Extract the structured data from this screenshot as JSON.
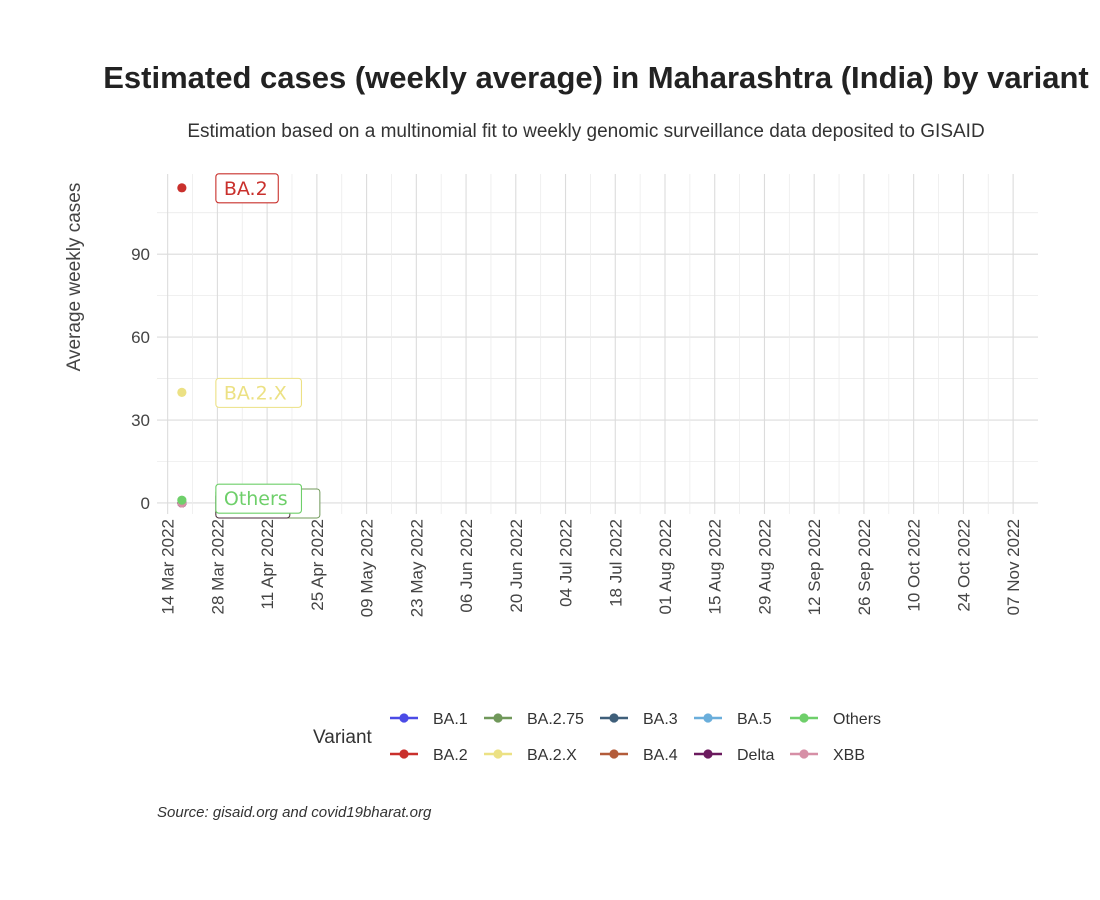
{
  "chart_data": {
    "type": "scatter",
    "title": "Estimated cases (weekly average) in Maharashtra (India) by variant",
    "subtitle": "Estimation based on a multinomial fit to weekly genomic surveillance data deposited to GISAID",
    "ylabel": "Average weekly cases",
    "xlabel": "",
    "ylim": [
      -4,
      119
    ],
    "yticks": [
      0,
      30,
      60,
      90
    ],
    "xlim": [
      "2022-03-11",
      "2022-11-14"
    ],
    "xticks": [
      "14 Mar 2022",
      "28 Mar 2022",
      "11 Apr 2022",
      "25 Apr 2022",
      "09 May 2022",
      "23 May 2022",
      "06 Jun 2022",
      "20 Jun 2022",
      "04 Jul 2022",
      "18 Jul 2022",
      "01 Aug 2022",
      "15 Aug 2022",
      "29 Aug 2022",
      "12 Sep 2022",
      "26 Sep 2022",
      "10 Oct 2022",
      "24 Oct 2022",
      "07 Nov 2022"
    ],
    "xtick_dates": [
      "2022-03-14",
      "2022-03-28",
      "2022-04-11",
      "2022-04-25",
      "2022-05-09",
      "2022-05-23",
      "2022-06-06",
      "2022-06-20",
      "2022-07-04",
      "2022-07-18",
      "2022-08-01",
      "2022-08-15",
      "2022-08-29",
      "2022-09-12",
      "2022-09-26",
      "2022-10-10",
      "2022-10-24",
      "2022-11-07"
    ],
    "grid": true,
    "legend_position": "bottom",
    "legend_title": "Variant",
    "legend_rows": [
      [
        "BA.1",
        "BA.2.75",
        "BA.3",
        "BA.5",
        "Others"
      ],
      [
        "BA.2",
        "BA.2.X",
        "BA.4",
        "Delta",
        "XBB"
      ]
    ],
    "series": [
      {
        "name": "BA.1",
        "color": "#4b4be6",
        "points": [
          {
            "x": "2022-03-18",
            "y": 0
          }
        ]
      },
      {
        "name": "BA.2",
        "color": "#c9302c",
        "points": [
          {
            "x": "2022-03-18",
            "y": 114
          }
        ],
        "label": "BA.2"
      },
      {
        "name": "BA.2.75",
        "color": "#70985a",
        "points": [
          {
            "x": "2022-03-18",
            "y": 0
          }
        ]
      },
      {
        "name": "BA.2.X",
        "color": "#ece184",
        "points": [
          {
            "x": "2022-03-18",
            "y": 40
          }
        ],
        "label": "BA.2.X"
      },
      {
        "name": "BA.3",
        "color": "#3f5f7a",
        "points": [
          {
            "x": "2022-03-18",
            "y": 0
          }
        ]
      },
      {
        "name": "BA.4",
        "color": "#b35c3a",
        "points": [
          {
            "x": "2022-03-18",
            "y": 0
          }
        ]
      },
      {
        "name": "BA.5",
        "color": "#6aaedb",
        "points": [
          {
            "x": "2022-03-18",
            "y": 0
          }
        ]
      },
      {
        "name": "Delta",
        "color": "#6b1a5e",
        "points": [
          {
            "x": "2022-03-18",
            "y": 0
          }
        ]
      },
      {
        "name": "Others",
        "color": "#6ecf6a",
        "points": [
          {
            "x": "2022-03-18",
            "y": 1
          }
        ],
        "label": "Others"
      },
      {
        "name": "XBB",
        "color": "#d68fa6",
        "points": [
          {
            "x": "2022-03-18",
            "y": 0
          }
        ]
      }
    ],
    "caption": "Source: gisaid.org and covid19bharat.org"
  }
}
